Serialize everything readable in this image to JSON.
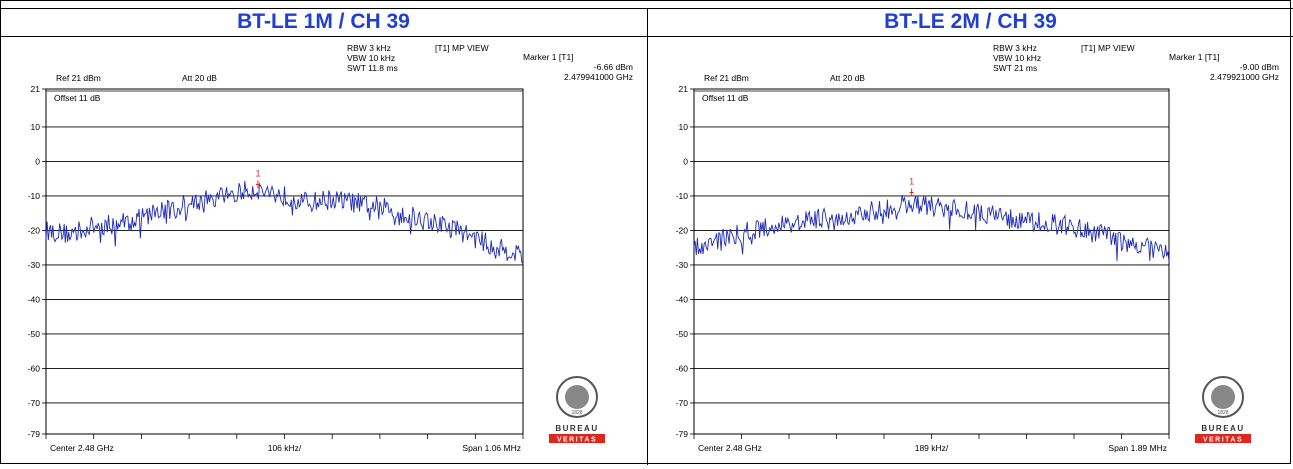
{
  "panels": [
    {
      "title": "BT-LE 1M / CH 39",
      "info": {
        "rbw": "RBW 3 kHz",
        "vbw": "VBW 10 kHz",
        "swt": "SWT 11.8 ms",
        "mode": "[T1] MP VIEW",
        "ref": "Ref 21 dBm",
        "att": "Att  20 dB",
        "offset": "Offset 11 dB",
        "marker_title": "Marker 1 [T1]",
        "marker_level": "-6.66 dBm",
        "marker_freq": "2.479941000 GHz",
        "marker_label": "1",
        "center": "Center 2.48 GHz",
        "div": "106 kHz/",
        "span": "Span 1.06 MHz"
      }
    },
    {
      "title": "BT-LE 2M / CH 39",
      "info": {
        "rbw": "RBW 3 kHz",
        "vbw": "VBW 10 kHz",
        "swt": "SWT 21 ms",
        "mode": "[T1] MP VIEW",
        "ref": "Ref 21 dBm",
        "att": "Att  20 dB",
        "offset": "Offset 11 dB",
        "marker_title": "Marker 1 [T1]",
        "marker_level": "-9.00 dBm",
        "marker_freq": "2.479921000 GHz",
        "marker_label": "1",
        "center": "Center 2.48 GHz",
        "div": "189 kHz/",
        "span": "Span 1.89 MHz"
      }
    }
  ],
  "logo": {
    "line1": "BUREAU",
    "line2": "VERITAS",
    "year": "1828",
    "color": "#e0261c"
  },
  "trace_color": "#1f2bb8",
  "marker_color": "#e0261c",
  "chart_data": [
    {
      "type": "line",
      "title": "BT-LE 1M / CH 39",
      "yticks": [
        21,
        10,
        0,
        -10,
        -20,
        -30,
        -40,
        -50,
        -60,
        -70,
        -79
      ],
      "ylim": [
        -79,
        21
      ],
      "xlim": [
        2.47947,
        2.48053
      ],
      "xunit": "GHz",
      "marker": {
        "x": 2.479941,
        "y": -6.66
      },
      "series": [
        {
          "x": [
            2.47947,
            2.47952,
            2.47957,
            2.47963,
            2.47968,
            2.47973,
            2.47979,
            2.47984,
            2.47989,
            2.47994,
            2.48,
            2.48005,
            2.4801,
            2.48016,
            2.48021,
            2.48026,
            2.48031,
            2.48037,
            2.48042,
            2.48047,
            2.48053
          ],
          "values": [
            -20,
            -21,
            -19,
            -18,
            -16,
            -14,
            -12,
            -11,
            -9,
            -8,
            -10,
            -12,
            -11,
            -12,
            -13,
            -15,
            -17,
            -19,
            -22,
            -25,
            -27
          ]
        }
      ]
    },
    {
      "type": "line",
      "title": "BT-LE 2M / CH 39",
      "yticks": [
        21,
        10,
        0,
        -10,
        -20,
        -30,
        -40,
        -50,
        -60,
        -70,
        -79
      ],
      "ylim": [
        -79,
        21
      ],
      "xlim": [
        2.479055,
        2.480945
      ],
      "xunit": "GHz",
      "marker": {
        "x": 2.479921,
        "y": -9.0
      },
      "series": [
        {
          "x": [
            2.479055,
            2.47915,
            2.479244,
            2.479339,
            2.479433,
            2.479528,
            2.479622,
            2.479717,
            2.479811,
            2.479906,
            2.48,
            2.480095,
            2.480189,
            2.480284,
            2.480378,
            2.480473,
            2.480567,
            2.480662,
            2.480756,
            2.480851,
            2.480945
          ],
          "values": [
            -25,
            -22,
            -21,
            -19,
            -18,
            -17,
            -16,
            -15,
            -14,
            -12,
            -13,
            -14,
            -15,
            -16,
            -17,
            -18,
            -19,
            -21,
            -23,
            -25,
            -27
          ]
        }
      ]
    }
  ]
}
